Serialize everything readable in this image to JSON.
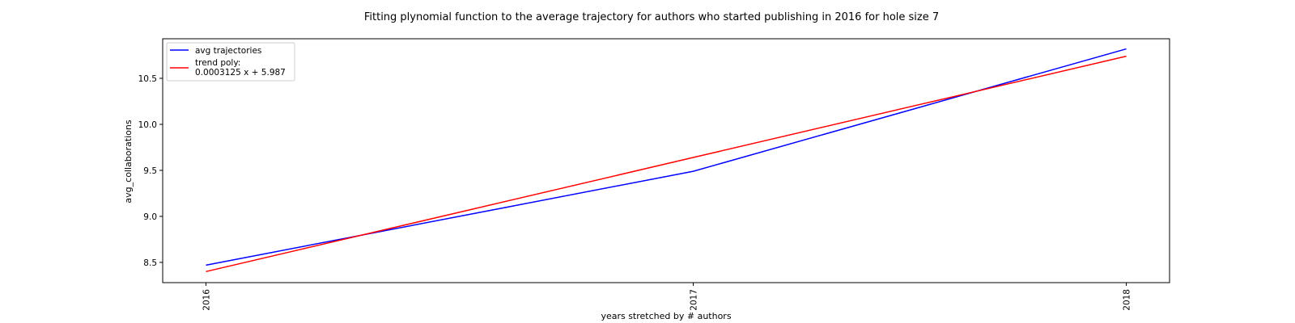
{
  "chart_data": {
    "type": "line",
    "title": "Fitting plynomial function to the average trajectory for authors who started publishing in 2016 for hole size 7",
    "xlabel": "years stretched by # authors",
    "ylabel": "avg_collaborations",
    "x_ticks": [
      "2016",
      "2017",
      "2018"
    ],
    "x": [
      0,
      1059,
      2000
    ],
    "xlim": [
      -94,
      2094
    ],
    "ylim": [
      8.28,
      10.93
    ],
    "y_ticks": [
      "8.5",
      "9.0",
      "9.5",
      "10.0",
      "10.5"
    ],
    "y_tick_values": [
      8.5,
      9.0,
      9.5,
      10.0,
      10.5
    ],
    "grid": false,
    "legend_position": "top-left",
    "series": [
      {
        "name": "avg trajectories",
        "color": "#0000ff",
        "values": [
          8.47,
          9.49,
          10.82
        ]
      },
      {
        "name": "trend poly:",
        "name_line2": "0.0003125 x + 5.987",
        "color": "#ff0000",
        "values": [
          8.4,
          9.64,
          10.74
        ]
      }
    ]
  }
}
